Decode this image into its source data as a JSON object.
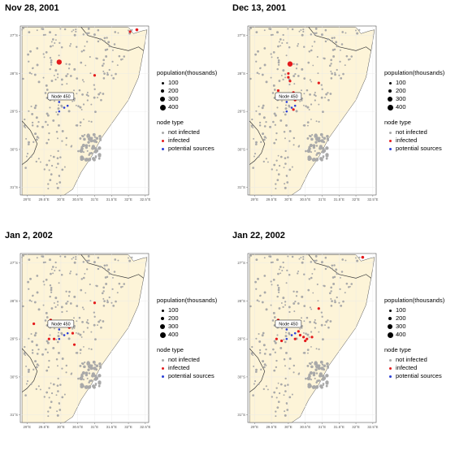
{
  "panels": [
    {
      "title": "Nov 28, 2001",
      "infected": [
        [
          31.0,
          -28.05,
          1.6
        ],
        [
          32.05,
          -26.9,
          1.6
        ],
        [
          32.25,
          -26.85,
          1.8
        ],
        [
          29.95,
          -27.7,
          3.2
        ]
      ],
      "sources": [
        [
          29.95,
          -28.75
        ],
        [
          29.95,
          -29.0
        ],
        [
          30.1,
          -28.9
        ],
        [
          30.2,
          -28.85
        ]
      ]
    },
    {
      "title": "Dec 13, 2001",
      "infected": [
        [
          30.0,
          -28.0,
          1.6
        ],
        [
          30.0,
          -28.1,
          1.6
        ],
        [
          30.05,
          -28.2,
          1.6
        ],
        [
          30.9,
          -28.25,
          1.6
        ],
        [
          29.7,
          -28.45,
          1.6
        ],
        [
          30.15,
          -28.5,
          1.6
        ],
        [
          30.2,
          -28.7,
          1.6
        ],
        [
          30.15,
          -28.95,
          1.6
        ],
        [
          30.05,
          -27.75,
          3.2
        ]
      ],
      "sources": [
        [
          29.95,
          -28.75
        ],
        [
          29.95,
          -29.0
        ],
        [
          30.1,
          -28.9
        ],
        [
          30.2,
          -28.85
        ]
      ]
    },
    {
      "title": "Jan 2, 2002",
      "infected": [
        [
          31.0,
          -28.05,
          1.6
        ],
        [
          29.2,
          -28.6,
          1.6
        ],
        [
          29.7,
          -28.5,
          1.6
        ],
        [
          30.25,
          -28.7,
          1.6
        ],
        [
          30.35,
          -28.85,
          1.6
        ],
        [
          29.65,
          -29.0,
          1.6
        ],
        [
          29.8,
          -29.0,
          1.6
        ],
        [
          30.4,
          -29.15,
          1.6
        ]
      ],
      "sources": [
        [
          29.95,
          -28.75
        ],
        [
          29.95,
          -29.0
        ],
        [
          30.1,
          -28.9
        ],
        [
          30.2,
          -28.85
        ]
      ]
    },
    {
      "title": "Jan 22, 2002",
      "infected": [
        [
          32.2,
          -26.85,
          1.8
        ],
        [
          30.9,
          -28.2,
          1.6
        ],
        [
          29.7,
          -28.5,
          1.6
        ],
        [
          30.0,
          -28.6,
          1.6
        ],
        [
          30.3,
          -28.8,
          1.6
        ],
        [
          30.35,
          -28.9,
          1.6
        ],
        [
          30.45,
          -28.95,
          1.6
        ],
        [
          30.55,
          -29.0,
          1.6
        ],
        [
          30.7,
          -28.95,
          1.6
        ],
        [
          30.5,
          -29.05,
          1.6
        ],
        [
          30.2,
          -29.0,
          1.6
        ],
        [
          29.65,
          -29.0,
          1.6
        ],
        [
          29.8,
          -29.05,
          1.6
        ]
      ],
      "sources": [
        [
          29.95,
          -28.75
        ],
        [
          29.95,
          -29.0
        ],
        [
          30.1,
          -28.9
        ],
        [
          30.2,
          -28.85
        ]
      ]
    }
  ],
  "annotation": "Node 450",
  "lon_ticks": [
    "29°E",
    "29.5°E",
    "30°E",
    "30.5°E",
    "31°E",
    "31.5°E",
    "32°E",
    "32.5°E"
  ],
  "lat_ticks": [
    "27°S",
    "28°S",
    "29°S",
    "30°S",
    "31°S"
  ],
  "legend": {
    "size_title": "population(thousands)",
    "size_labels": [
      "100",
      "200",
      "300",
      "400"
    ],
    "type_title": "node type",
    "type_labels": [
      "not infected",
      "infected",
      "potential sources"
    ]
  },
  "colors": {
    "land": "#fdf4d8",
    "sea": "#ffffff",
    "grid": "#e8e8e8",
    "not_infected": "#a9a9a9",
    "infected": "#e41a1c",
    "sources": "#2b3fd6",
    "border": "#3a3a3a"
  }
}
